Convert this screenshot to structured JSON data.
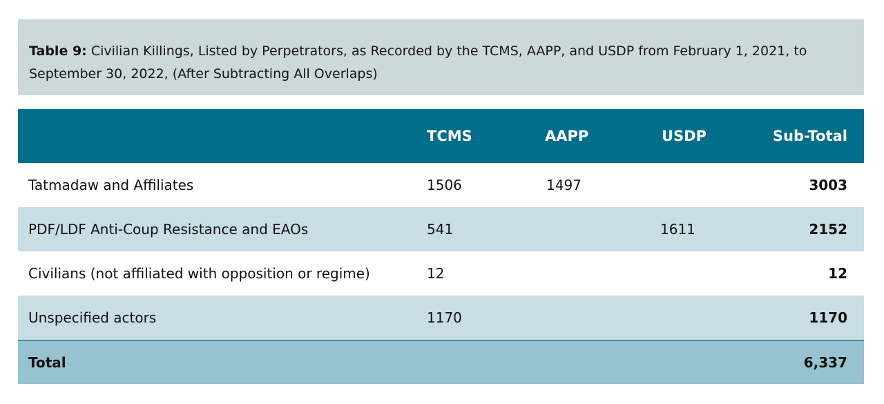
{
  "caption": {
    "label": "Table 9:",
    "text": "Civilian Killings, Listed by Perpetrators, as Recorded by the TCMS, AAPP, and USDP from February 1, 2021, to September 30, 2022, (After Subtracting All Overlaps)"
  },
  "header": {
    "label": "",
    "tcms": "TCMS",
    "aapp": "AAPP",
    "usdp": "USDP",
    "subtotal": "Sub-Total"
  },
  "rows": [
    {
      "label": "Tatmadaw and Affiliates",
      "tcms": "1506",
      "aapp": "1497",
      "usdp": "",
      "subtotal": "3003"
    },
    {
      "label": "PDF/LDF Anti-Coup Resistance and EAOs",
      "tcms": "541",
      "aapp": "",
      "usdp": "1611",
      "subtotal": "2152"
    },
    {
      "label": "Civilians (not affiliated with opposition or regime)",
      "tcms": "12",
      "aapp": "",
      "usdp": "",
      "subtotal": "12"
    },
    {
      "label": "Unspecified actors",
      "tcms": "1170",
      "aapp": "",
      "usdp": "",
      "subtotal": "1170"
    }
  ],
  "total": {
    "label": "Total",
    "value": "6,337"
  },
  "colors": {
    "caption_bg": "#cdd8dc",
    "header_bg": "#006e8a",
    "alt_row_bg": "#c8dde4",
    "total_bg": "#96c3cf"
  }
}
